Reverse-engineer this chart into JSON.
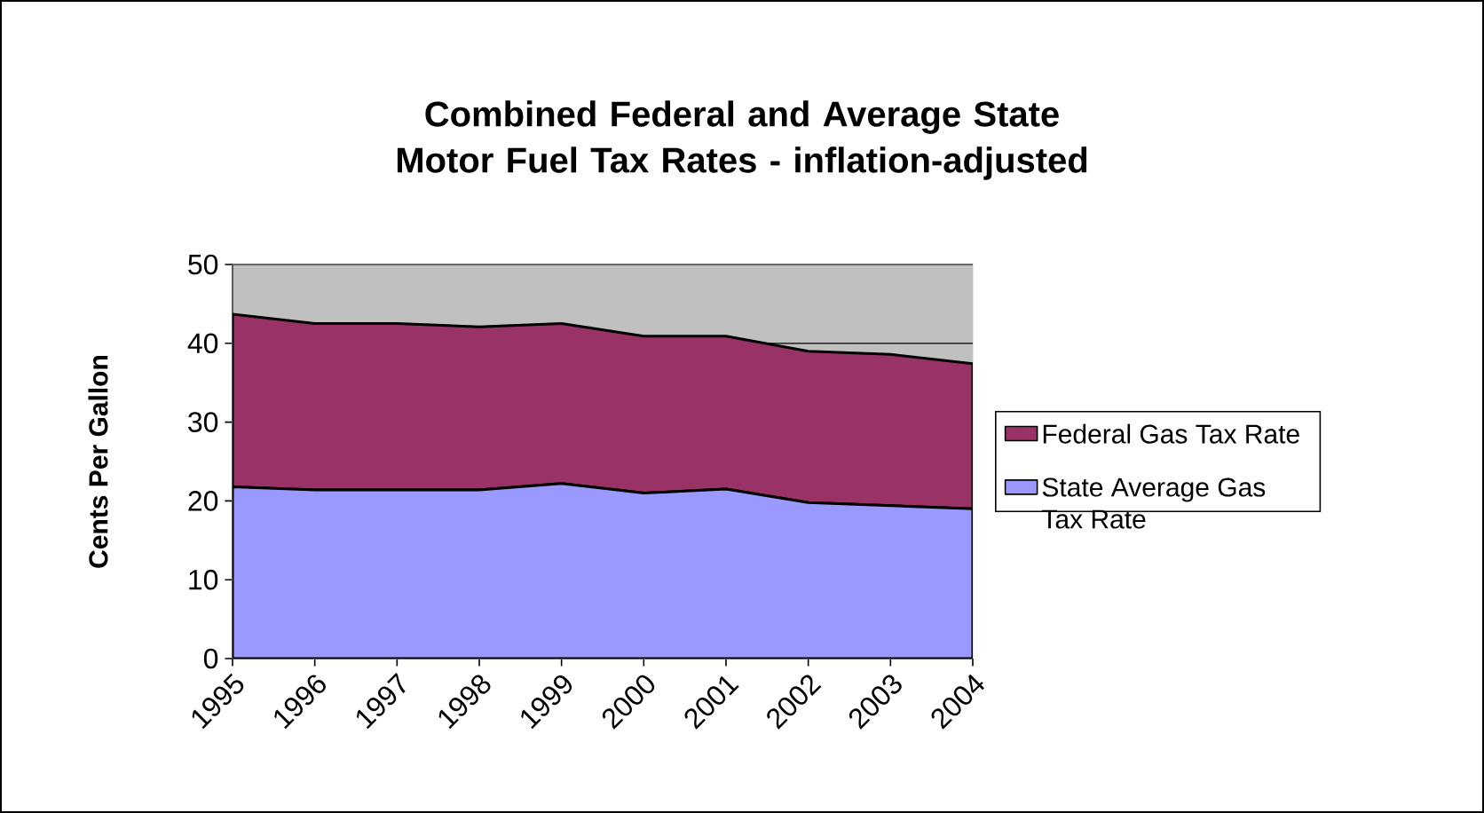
{
  "chart_data": {
    "type": "area",
    "stacked": true,
    "title": "Combined Federal and Average State Motor Fuel Tax Rates - inflation-adjusted",
    "ylabel": "Cents Per Gallon",
    "categories": [
      "1995",
      "1996",
      "1997",
      "1998",
      "1999",
      "2000",
      "2001",
      "2002",
      "2003",
      "2004"
    ],
    "series": [
      {
        "name": "State Average Gas Tax Rate",
        "color": "#9999ff",
        "values": [
          21.8,
          21.4,
          21.4,
          21.4,
          22.2,
          21.0,
          21.5,
          19.8,
          19.4,
          19.0
        ]
      },
      {
        "name": "Federal Gas Tax Rate",
        "color": "#993366",
        "values": [
          21.9,
          21.1,
          21.1,
          20.7,
          20.3,
          19.9,
          19.4,
          19.2,
          19.2,
          18.4
        ]
      }
    ],
    "ylim": [
      0,
      50
    ],
    "yticks": [
      0,
      10,
      20,
      30,
      40,
      50
    ],
    "grid": "y",
    "legend": "right"
  }
}
